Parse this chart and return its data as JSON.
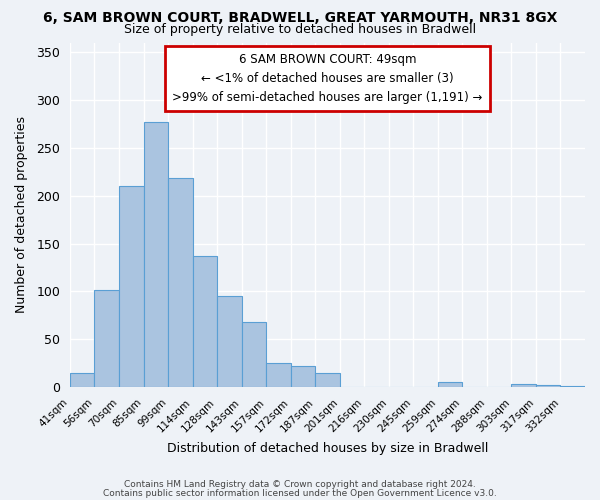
{
  "title": "6, SAM BROWN COURT, BRADWELL, GREAT YARMOUTH, NR31 8GX",
  "subtitle": "Size of property relative to detached houses in Bradwell",
  "xlabel": "Distribution of detached houses by size in Bradwell",
  "ylabel": "Number of detached properties",
  "bin_labels": [
    "41sqm",
    "56sqm",
    "70sqm",
    "85sqm",
    "99sqm",
    "114sqm",
    "128sqm",
    "143sqm",
    "157sqm",
    "172sqm",
    "187sqm",
    "201sqm",
    "216sqm",
    "230sqm",
    "245sqm",
    "259sqm",
    "274sqm",
    "288sqm",
    "303sqm",
    "317sqm",
    "332sqm"
  ],
  "bar_heights": [
    15,
    101,
    210,
    277,
    218,
    137,
    95,
    68,
    25,
    22,
    15,
    0,
    0,
    0,
    0,
    5,
    0,
    0,
    3,
    2,
    1
  ],
  "bar_color": "#aac4e0",
  "bar_edge_color": "#5a9fd4",
  "annotation_title": "6 SAM BROWN COURT: 49sqm",
  "annotation_line1": "← <1% of detached houses are smaller (3)",
  "annotation_line2": ">99% of semi-detached houses are larger (1,191) →",
  "annotation_box_color": "#ffffff",
  "annotation_border_color": "#cc0000",
  "ylim": [
    0,
    360
  ],
  "yticks": [
    0,
    50,
    100,
    150,
    200,
    250,
    300,
    350
  ],
  "footer1": "Contains HM Land Registry data © Crown copyright and database right 2024.",
  "footer2": "Contains public sector information licensed under the Open Government Licence v3.0.",
  "background_color": "#eef2f7"
}
